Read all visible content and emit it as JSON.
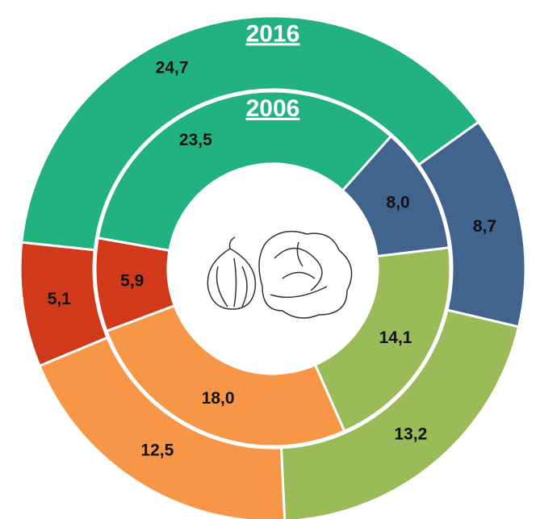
{
  "chart_data": {
    "type": "donut",
    "colors": [
      "#21b27f",
      "#41648f",
      "#9bbb59",
      "#f79646",
      "#d0391a"
    ],
    "series": [
      {
        "name": "2016",
        "values": [
          24.7,
          8.7,
          13.2,
          12.5,
          5.1
        ],
        "value_labels": [
          "24,7",
          "8,7",
          "13,2",
          "12,5",
          "5,1"
        ]
      },
      {
        "name": "2006",
        "values": [
          23.5,
          8.0,
          14.1,
          18.0,
          5.9
        ],
        "value_labels": [
          "23,5",
          "8,0",
          "14,1",
          "18,0",
          "5,9"
        ]
      }
    ]
  }
}
